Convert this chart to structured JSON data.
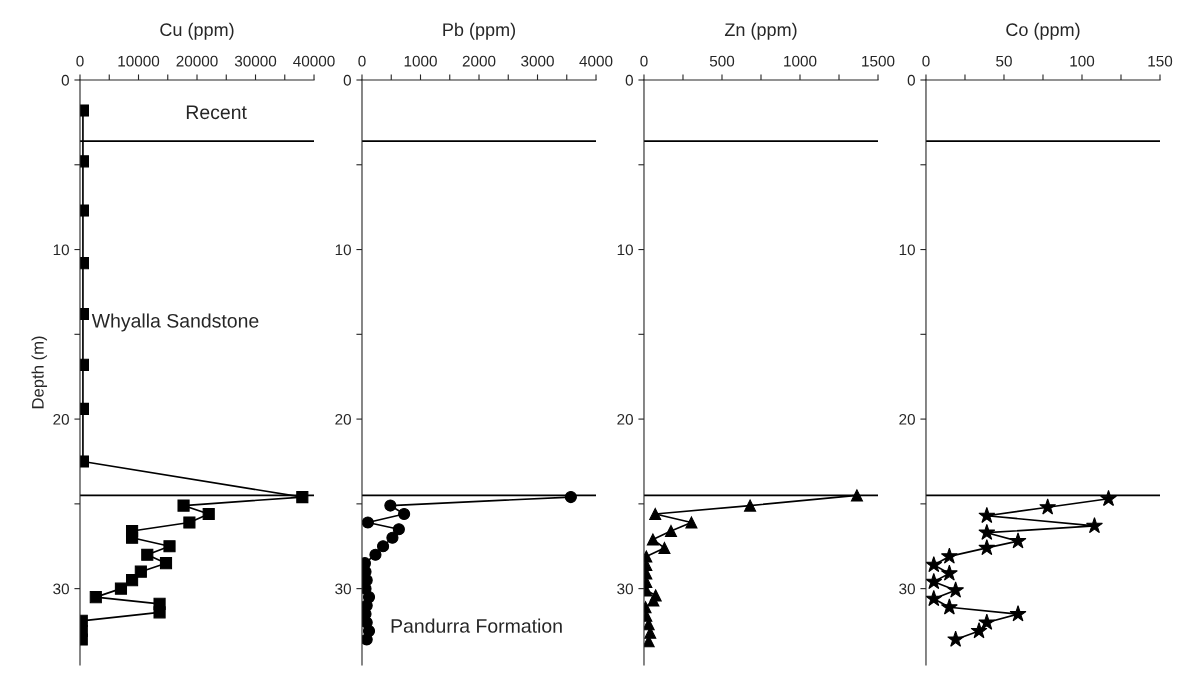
{
  "chart_data": [
    {
      "type": "line",
      "orientation": "horizontal",
      "xlabel": "Cu (ppm)",
      "ylabel": "Depth (m)",
      "marker": "square",
      "line_style": "solid",
      "xlim": [
        0,
        40000
      ],
      "xticks": [
        0,
        {
          "value": 5000,
          "label": null
        },
        10000,
        {
          "value": 15000,
          "label": null
        },
        20000,
        {
          "value": 25000,
          "label": null
        },
        30000,
        {
          "value": 35000,
          "label": null
        },
        40000
      ],
      "ylim": [
        34.5,
        0
      ],
      "yticks": [
        0,
        {
          "value": 5,
          "label": null
        },
        10,
        {
          "value": 15,
          "label": null
        },
        20,
        {
          "value": 25,
          "label": null
        },
        30
      ],
      "ref_lines": [
        {
          "axis": "y",
          "value": 3.6
        },
        {
          "axis": "y",
          "value": 24.5
        }
      ],
      "annotations": [
        "Recent",
        "Whyalla Sandstone"
      ],
      "series": [
        {
          "color": "#000000",
          "x": [
            1.8,
            4.8,
            7.7,
            10.8,
            13.8,
            16.8,
            19.4,
            22.5,
            24.6,
            25.1,
            25.6,
            26.1,
            26.6,
            27.0,
            27.5,
            28.0,
            28.5,
            29.0,
            29.5,
            30.0,
            30.5,
            30.9,
            31.4,
            31.9,
            32.5,
            33.0
          ],
          "values": [
            500,
            500,
            500,
            500,
            500,
            500,
            500,
            500,
            38000,
            17700,
            22000,
            18700,
            8900,
            8900,
            15300,
            11500,
            14700,
            10400,
            8900,
            7000,
            2700,
            13600,
            13600,
            300,
            300,
            300
          ]
        }
      ]
    },
    {
      "type": "line",
      "orientation": "horizontal",
      "xlabel": "Pb (ppm)",
      "marker": "circle",
      "line_style": "solid",
      "xlim": [
        0,
        4000
      ],
      "xticks": [
        0,
        {
          "value": 500,
          "label": null
        },
        1000,
        {
          "value": 1500,
          "label": null
        },
        2000,
        {
          "value": 2500,
          "label": null
        },
        3000,
        {
          "value": 3500,
          "label": null
        },
        4000
      ],
      "ylim": [
        34.5,
        0
      ],
      "yticks": [
        0,
        {
          "value": 5,
          "label": null
        },
        10,
        {
          "value": 15,
          "label": null
        },
        20,
        {
          "value": 25,
          "label": null
        },
        30
      ],
      "ref_lines": [
        {
          "axis": "y",
          "value": 3.6
        },
        {
          "axis": "y",
          "value": 24.5
        }
      ],
      "annotations": [
        "Pandurra Formation"
      ],
      "series": [
        {
          "color": "#000000",
          "x": [
            24.6,
            25.1,
            25.6,
            26.1,
            26.5,
            27.0,
            27.5,
            28.0,
            28.5,
            29.0,
            29.5,
            30.0,
            30.5,
            31.0,
            31.5,
            32.0,
            32.5,
            33.0
          ],
          "values": [
            3570,
            485,
            720,
            100,
            630,
            520,
            360,
            230,
            50,
            60,
            80,
            60,
            120,
            80,
            60,
            80,
            120,
            80
          ]
        }
      ]
    },
    {
      "type": "line",
      "orientation": "horizontal",
      "xlabel": "Zn (ppm)",
      "marker": "triangle",
      "line_style": "solid",
      "xlim": [
        0,
        1500
      ],
      "xticks": [
        0,
        {
          "value": 250,
          "label": null
        },
        500,
        {
          "value": 750,
          "label": null
        },
        1000,
        {
          "value": 1250,
          "label": null
        },
        1500
      ],
      "ylim": [
        34.5,
        0
      ],
      "yticks": [
        0,
        {
          "value": 5,
          "label": null
        },
        10,
        {
          "value": 15,
          "label": null
        },
        20,
        {
          "value": 25,
          "label": null
        },
        30
      ],
      "ref_lines": [
        {
          "axis": "y",
          "value": 3.6
        },
        {
          "axis": "y",
          "value": 24.5
        }
      ],
      "series": [
        {
          "color": "#000000",
          "x": [
            24.5,
            25.1,
            25.6,
            26.1,
            26.6,
            27.1,
            27.6,
            28.1,
            28.6,
            29.1,
            29.6,
            30.1,
            30.4,
            30.7,
            31.1,
            31.6,
            32.1,
            32.6,
            33.1
          ],
          "values": [
            1365,
            680,
            72,
            304,
            173,
            57,
            131,
            15,
            15,
            15,
            15,
            15,
            75,
            60,
            10,
            15,
            30,
            40,
            30
          ]
        }
      ]
    },
    {
      "type": "line",
      "orientation": "horizontal",
      "xlabel": "Co (ppm)",
      "marker": "star",
      "line_style": "solid",
      "xlim": [
        0,
        150
      ],
      "xticks": [
        0,
        {
          "value": 25,
          "label": null
        },
        50,
        {
          "value": 75,
          "label": null
        },
        100,
        {
          "value": 125,
          "label": null
        },
        150
      ],
      "ylim": [
        34.5,
        0
      ],
      "yticks": [
        0,
        {
          "value": 5,
          "label": null
        },
        10,
        {
          "value": 15,
          "label": null
        },
        20,
        {
          "value": 25,
          "label": null
        },
        30
      ],
      "ref_lines": [
        {
          "axis": "y",
          "value": 3.6
        },
        {
          "axis": "y",
          "value": 24.5
        }
      ],
      "series": [
        {
          "color": "#000000",
          "x": [
            24.7,
            25.2,
            25.7,
            26.3,
            26.7,
            27.2,
            27.6,
            28.1,
            28.6,
            29.1,
            29.6,
            30.1,
            30.6,
            31.1,
            31.5,
            32.0,
            32.5,
            33.0
          ],
          "values": [
            117,
            78,
            39,
            108,
            39,
            59,
            39,
            15,
            5,
            15,
            5,
            19,
            5,
            15,
            59,
            39,
            34,
            19
          ]
        }
      ]
    }
  ]
}
